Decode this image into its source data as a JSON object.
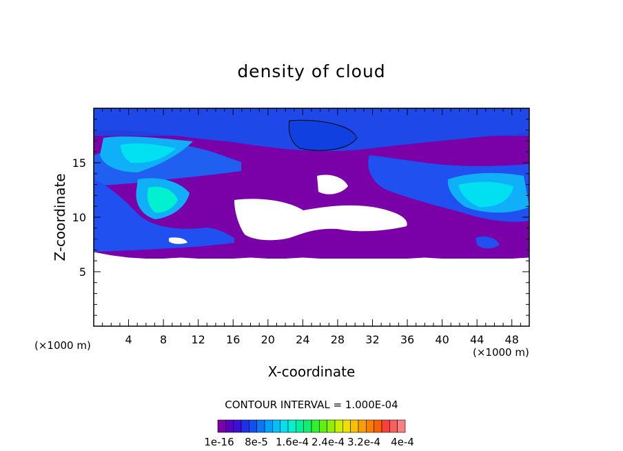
{
  "chart_data": {
    "type": "heatmap",
    "title": "density of cloud",
    "xlabel": "X-coordinate",
    "ylabel": "Z-coordinate",
    "x_unit": "(×1000 m)",
    "y_unit": "(×1000 m)",
    "xlim": [
      0,
      50
    ],
    "ylim": [
      0,
      20
    ],
    "x_ticks": [
      "4",
      "8",
      "12",
      "16",
      "20",
      "24",
      "28",
      "32",
      "36",
      "40",
      "44",
      "48"
    ],
    "y_ticks": [
      "5",
      "10",
      "15"
    ],
    "grid": false,
    "contour_interval_label": "CONTOUR INTERVAL = 1.000E-04",
    "colorbar_labels": [
      "1e-16",
      "8e-5",
      "1.6e-4",
      "2.4e-4",
      "3.2e-4",
      "4e-4"
    ],
    "colorbar_colors": [
      "#7a00a8",
      "#5a00c0",
      "#3a10d8",
      "#2030e8",
      "#1050f0",
      "#0878f8",
      "#00a0ff",
      "#00c0ff",
      "#00e0f0",
      "#00f0d0",
      "#00f0a0",
      "#10f070",
      "#30f030",
      "#60f010",
      "#90f000",
      "#c8f000",
      "#f0e000",
      "#f8c000",
      "#f8a000",
      "#f88000",
      "#f86000",
      "#f84040",
      "#f86060",
      "#f88080"
    ],
    "cloud_band": {
      "base_z": [
        6.8,
        6.5,
        6.3,
        6.2,
        6.2,
        6.3,
        6.2,
        6.2,
        6.2,
        6.3,
        6.2,
        6.2,
        6.3,
        6.2,
        6.2,
        6.2,
        6.2,
        6.2,
        6.2,
        6.3,
        6.2,
        6.2,
        6.2,
        6.2,
        6.2,
        6.3
      ],
      "top_z": 20,
      "x_start": 0,
      "x_step": 2
    }
  }
}
